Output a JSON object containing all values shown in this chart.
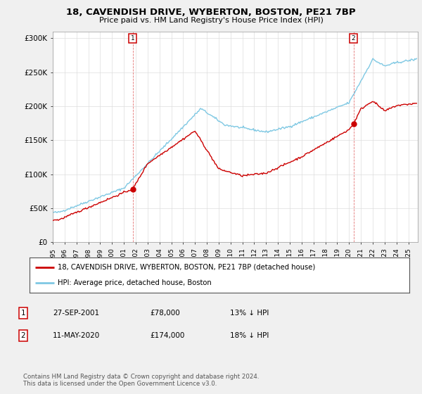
{
  "title": "18, CAVENDISH DRIVE, WYBERTON, BOSTON, PE21 7BP",
  "subtitle": "Price paid vs. HM Land Registry's House Price Index (HPI)",
  "ylabel_ticks": [
    "£0",
    "£50K",
    "£100K",
    "£150K",
    "£200K",
    "£250K",
    "£300K"
  ],
  "ytick_vals": [
    0,
    50000,
    100000,
    150000,
    200000,
    250000,
    300000
  ],
  "ylim": [
    0,
    310000
  ],
  "xlim_start": 1995.0,
  "xlim_end": 2025.8,
  "hpi_color": "#7ec8e3",
  "price_color": "#cc0000",
  "marker1_date": 2001.74,
  "marker1_price": 78000,
  "marker2_date": 2020.37,
  "marker2_price": 174000,
  "legend_label1": "18, CAVENDISH DRIVE, WYBERTON, BOSTON, PE21 7BP (detached house)",
  "legend_label2": "HPI: Average price, detached house, Boston",
  "table_row1": [
    "1",
    "27-SEP-2001",
    "£78,000",
    "13% ↓ HPI"
  ],
  "table_row2": [
    "2",
    "11-MAY-2020",
    "£174,000",
    "18% ↓ HPI"
  ],
  "footer": "Contains HM Land Registry data © Crown copyright and database right 2024.\nThis data is licensed under the Open Government Licence v3.0.",
  "background_color": "#f0f0f0",
  "plot_bg_color": "#ffffff"
}
